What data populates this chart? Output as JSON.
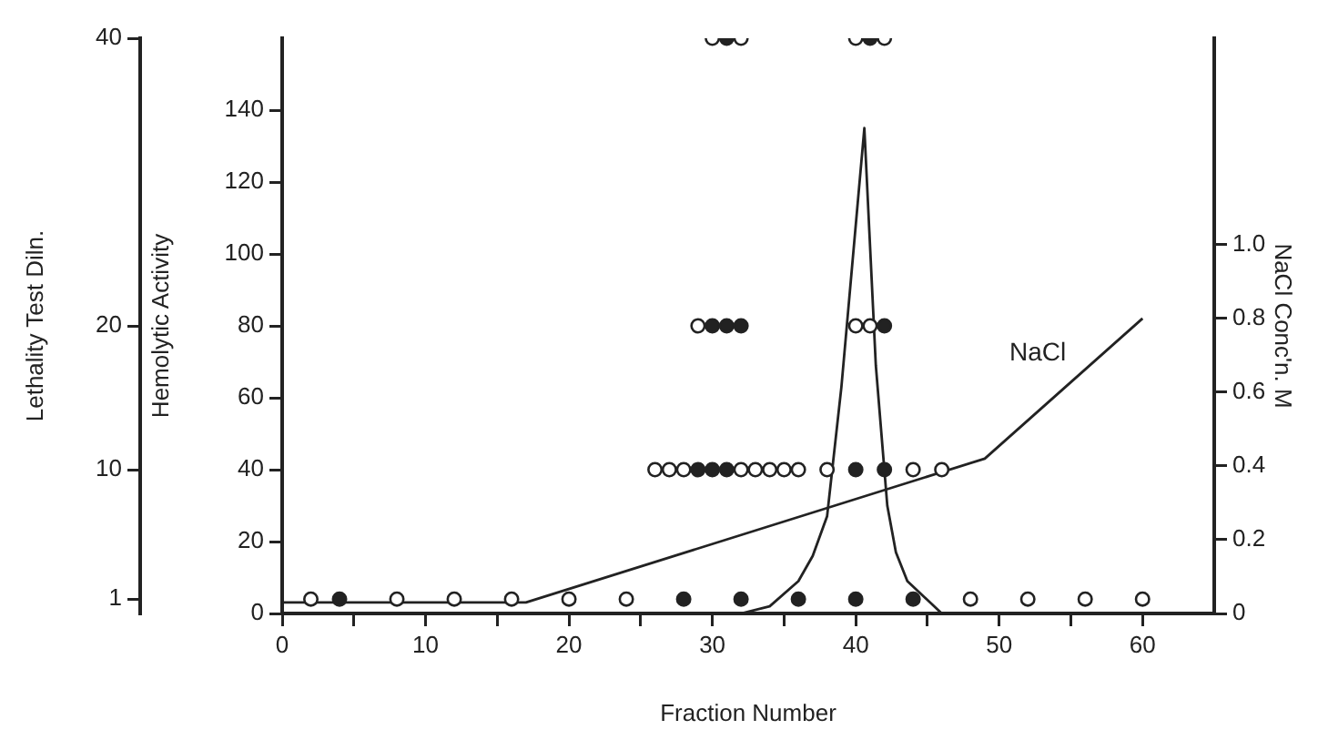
{
  "chart_data": {
    "type": "scatter",
    "xlabel": "Fraction Number",
    "ylabel": "Hemolytic Activity",
    "y2label": "NaCl Conc'n. M",
    "y3label": "Lethality Test Diln.",
    "xlim": [
      0,
      65
    ],
    "xticks": [
      0,
      {
        "value": 5,
        "label": null
      },
      10,
      {
        "value": 15,
        "label": null
      },
      20,
      {
        "value": 25,
        "label": null
      },
      30,
      {
        "value": 35,
        "label": null
      },
      40,
      {
        "value": 45,
        "label": null
      },
      50,
      {
        "value": 55,
        "label": null
      },
      60
    ],
    "ylim": [
      0,
      160
    ],
    "yticks": [
      0,
      20,
      40,
      60,
      80,
      100,
      120,
      140
    ],
    "y2lim": [
      0,
      1.56
    ],
    "y2ticks": [
      0,
      0.2,
      0.4,
      0.6,
      0.8,
      {
        "value": 1,
        "label": "1.0"
      }
    ],
    "y3lim": [
      0,
      40
    ],
    "y3ticks": [
      1,
      10,
      20,
      40
    ],
    "legend": false,
    "marker": "circle",
    "series": [
      {
        "type": "scatter",
        "color": "#ffffff",
        "axis": "y3",
        "x": [
          2,
          8,
          12,
          16,
          20,
          24,
          48,
          52,
          56,
          60,
          26,
          27,
          28,
          32,
          33,
          34,
          35,
          36,
          38,
          44,
          46,
          29,
          40,
          41,
          30,
          32,
          40,
          42
        ],
        "values": [
          1,
          1,
          1,
          1,
          1,
          1,
          1,
          1,
          1,
          1,
          10,
          10,
          10,
          10,
          10,
          10,
          10,
          10,
          10,
          10,
          10,
          20,
          20,
          20,
          40,
          40,
          40,
          40
        ]
      },
      {
        "type": "scatter",
        "color": "#222222",
        "axis": "y3",
        "x": [
          4,
          28,
          32,
          36,
          40,
          44,
          29,
          30,
          31,
          40,
          42,
          30,
          31,
          32,
          42,
          31,
          41
        ],
        "values": [
          1,
          1,
          1,
          1,
          1,
          1,
          10,
          10,
          10,
          10,
          10,
          20,
          20,
          20,
          20,
          40,
          40
        ]
      },
      {
        "type": "line",
        "color": "#222222",
        "marker": "none",
        "x": [
          32,
          34,
          36,
          37,
          38,
          39,
          40.6,
          41.4,
          42.2,
          42.8,
          43.6,
          46
        ],
        "values": [
          0,
          2,
          9,
          16,
          27,
          63,
          135,
          69,
          30,
          17,
          9,
          0
        ]
      },
      {
        "type": "line",
        "name": "NaCl",
        "color": "#222222",
        "marker": "none",
        "axis": "y2",
        "x": [
          0,
          17,
          49,
          60
        ],
        "values": [
          0.03,
          0.03,
          0.42,
          0.8
        ]
      }
    ]
  }
}
